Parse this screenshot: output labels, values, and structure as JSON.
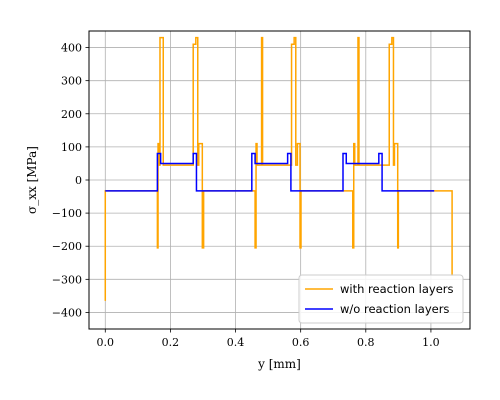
{
  "chart_data": {
    "type": "line",
    "xlabel": "y [mm]",
    "ylabel": "σ_xx [MPa]",
    "xlim": [
      -0.05,
      1.12
    ],
    "ylim": [
      -450,
      450
    ],
    "xticks": [
      0.0,
      0.2,
      0.4,
      0.6,
      0.8,
      1.0
    ],
    "xtick_labels": [
      "0.0",
      "0.2",
      "0.4",
      "0.6",
      "0.8",
      "1.0"
    ],
    "yticks": [
      -400,
      -300,
      -200,
      -100,
      0,
      100,
      200,
      300,
      400
    ],
    "ytick_labels": [
      "−400",
      "−300",
      "−200",
      "−100",
      "0",
      "100",
      "200",
      "300",
      "400"
    ],
    "grid": true,
    "legend_position": "lower-right",
    "series": [
      {
        "name": "with reaction layers",
        "color": "#ffa500",
        "x": [
          0.0,
          0.0,
          0.002,
          0.16,
          0.16,
          0.162,
          0.162,
          0.165,
          0.165,
          0.168,
          0.168,
          0.178,
          0.178,
          0.18,
          0.18,
          0.27,
          0.27,
          0.278,
          0.278,
          0.284,
          0.284,
          0.287,
          0.287,
          0.298,
          0.298,
          0.302,
          0.302,
          0.46,
          0.46,
          0.463,
          0.463,
          0.466,
          0.466,
          0.48,
          0.48,
          0.483,
          0.483,
          0.572,
          0.572,
          0.58,
          0.58,
          0.585,
          0.585,
          0.59,
          0.59,
          0.598,
          0.598,
          0.601,
          0.601,
          0.76,
          0.76,
          0.763,
          0.763,
          0.766,
          0.766,
          0.776,
          0.776,
          0.779,
          0.779,
          0.872,
          0.872,
          0.88,
          0.88,
          0.885,
          0.885,
          0.888,
          0.888,
          0.898,
          0.898,
          0.9,
          0.9,
          1.065,
          1.065
        ],
        "y": [
          -365,
          -33,
          -33,
          -33,
          -205,
          -205,
          110,
          110,
          45,
          45,
          430,
          430,
          45,
          45,
          45,
          45,
          410,
          410,
          430,
          430,
          45,
          45,
          110,
          110,
          -205,
          -205,
          -33,
          -33,
          -205,
          -205,
          110,
          110,
          45,
          45,
          430,
          430,
          45,
          45,
          410,
          410,
          430,
          430,
          45,
          45,
          110,
          110,
          -205,
          -205,
          -33,
          -33,
          -205,
          -205,
          110,
          110,
          45,
          45,
          430,
          430,
          45,
          45,
          410,
          410,
          430,
          430,
          45,
          45,
          110,
          110,
          -205,
          -205,
          -33,
          -33,
          -290
        ]
      },
      {
        "name": "w/o reaction layers",
        "color": "#0000ff",
        "x": [
          0.0,
          0.16,
          0.16,
          0.17,
          0.17,
          0.27,
          0.27,
          0.28,
          0.28,
          0.45,
          0.45,
          0.46,
          0.46,
          0.56,
          0.56,
          0.57,
          0.57,
          0.73,
          0.73,
          0.74,
          0.74,
          0.84,
          0.84,
          0.85,
          0.85,
          1.01
        ],
        "y": [
          -33,
          -33,
          80,
          80,
          50,
          50,
          80,
          80,
          -33,
          -33,
          80,
          80,
          50,
          50,
          80,
          80,
          -33,
          -33,
          80,
          80,
          50,
          50,
          80,
          80,
          -33,
          -33
        ]
      }
    ]
  }
}
